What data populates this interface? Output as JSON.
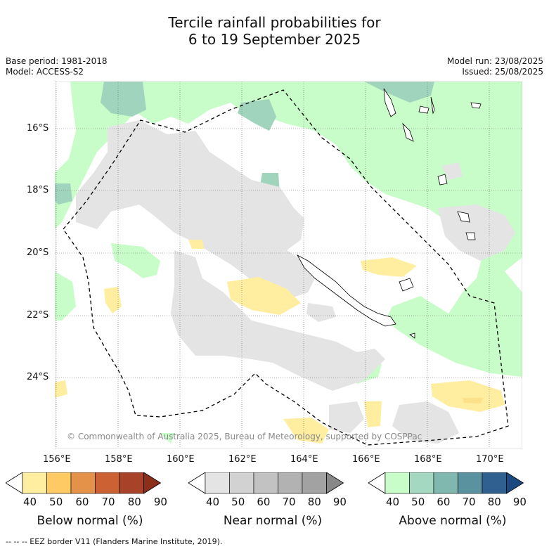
{
  "title_line1": "Tercile rainfall probabilities for",
  "title_line2": "6 to 19 September 2025",
  "meta_left": [
    "Base period: 1981-2018",
    "Model: ACCESS-S2"
  ],
  "meta_right": [
    "Model run: 23/08/2025",
    "Issued: 25/08/2025"
  ],
  "lon_ticks": [
    "156°E",
    "158°E",
    "160°E",
    "162°E",
    "164°E",
    "166°E",
    "168°E",
    "170°E"
  ],
  "lat_ticks": [
    "16°S",
    "18°S",
    "20°S",
    "22°S",
    "24°S"
  ],
  "copyright": "© Commonwealth of Australia 2025, Bureau of Meteorology, supported by COSPPac",
  "footer": "--  --  -- EEZ border V11 (Flanders Marine Institute, 2019).",
  "colorbars": [
    {
      "label": "Below normal (%)",
      "ticks": [
        "40",
        "50",
        "60",
        "70",
        "80",
        "90"
      ],
      "colors": [
        "#ffffff",
        "#ffeea0",
        "#fdca63",
        "#e4914a",
        "#cc6233",
        "#a8432a",
        "#8b2e1a"
      ]
    },
    {
      "label": "Near normal (%)",
      "ticks": [
        "40",
        "50",
        "60",
        "70",
        "80",
        "90"
      ],
      "colors": [
        "#ffffff",
        "#e4e4e4",
        "#d2d2d2",
        "#c2c2c2",
        "#b2b2b2",
        "#a2a2a2",
        "#888888"
      ]
    },
    {
      "label": "Above normal (%)",
      "ticks": [
        "40",
        "50",
        "60",
        "70",
        "80",
        "90"
      ],
      "colors": [
        "#ffffff",
        "#c8fcc8",
        "#a4d8c0",
        "#80b8b0",
        "#5a92a0",
        "#306090",
        "#1b4a80"
      ]
    }
  ],
  "colors": {
    "above50": "#c8fcc8",
    "above60": "#a0d4bc",
    "near50": "#e4e4e4",
    "below50": "#ffeea0",
    "below60": "#fde08a"
  }
}
